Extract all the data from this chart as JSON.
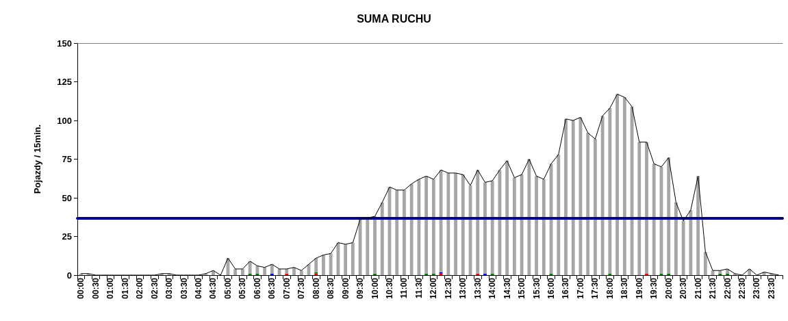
{
  "chart_data": {
    "type": "bar",
    "title": "SUMA RUCHU",
    "ylabel": "Pojazdy / 15min.",
    "categories": [
      "00:00",
      null,
      "00:30",
      null,
      "01:00",
      null,
      "01:30",
      null,
      "02:00",
      null,
      "02:30",
      null,
      "03:00",
      null,
      "03:30",
      null,
      "04:00",
      null,
      "04:30",
      null,
      "05:00",
      null,
      "05:30",
      null,
      "06:00",
      null,
      "06:30",
      null,
      "07:00",
      null,
      "07:30",
      null,
      "08:00",
      null,
      "08:30",
      null,
      "09:00",
      null,
      "09:30",
      null,
      "10:00",
      null,
      "10:30",
      null,
      "11:00",
      null,
      "11:30",
      null,
      "12:00",
      null,
      "12:30",
      null,
      "13:00",
      null,
      "13:30",
      null,
      "14:00",
      null,
      "14:30",
      null,
      "15:00",
      null,
      "15:30",
      null,
      "16:00",
      null,
      "16:30",
      null,
      "17:00",
      null,
      "17:30",
      null,
      "18:00",
      null,
      "18:30",
      null,
      "19:00",
      null,
      "19:30",
      null,
      "20:00",
      null,
      "20:30",
      null,
      "21:00",
      null,
      "21:30",
      null,
      "22:00",
      null,
      "22:30",
      null,
      "23:00",
      null,
      "23:30",
      null
    ],
    "stacked": true,
    "series": [
      {
        "color": "#ff0000",
        "values": [
          null,
          null,
          null,
          null,
          null,
          null,
          null,
          null,
          null,
          null,
          null,
          null,
          null,
          null,
          null,
          null,
          null,
          null,
          null,
          null,
          null,
          null,
          null,
          null,
          null,
          null,
          null,
          null,
          1,
          null,
          null,
          null,
          1,
          null,
          null,
          null,
          null,
          null,
          null,
          null,
          null,
          null,
          null,
          null,
          null,
          null,
          null,
          null,
          null,
          1,
          null,
          null,
          null,
          null,
          1,
          null,
          null,
          null,
          null,
          null,
          null,
          null,
          null,
          null,
          null,
          null,
          null,
          null,
          null,
          null,
          null,
          null,
          null,
          null,
          null,
          null,
          null,
          1,
          null,
          null,
          null,
          null,
          null,
          null,
          null,
          null,
          null,
          null,
          null,
          null,
          null,
          null,
          null,
          null,
          null,
          null
        ]
      },
      {
        "color": "#0000ff",
        "values": [
          null,
          null,
          null,
          null,
          null,
          null,
          null,
          null,
          null,
          null,
          null,
          null,
          null,
          null,
          null,
          null,
          null,
          null,
          null,
          null,
          null,
          null,
          null,
          null,
          null,
          null,
          1,
          null,
          null,
          null,
          null,
          null,
          null,
          null,
          null,
          null,
          null,
          null,
          null,
          null,
          null,
          null,
          null,
          null,
          null,
          null,
          null,
          null,
          null,
          1,
          null,
          null,
          null,
          null,
          null,
          1,
          null,
          null,
          null,
          null,
          null,
          null,
          null,
          null,
          null,
          null,
          null,
          null,
          null,
          null,
          null,
          null,
          null,
          null,
          null,
          null,
          null,
          null,
          null,
          null,
          null,
          null,
          null,
          null,
          null,
          null,
          null,
          null,
          null,
          null,
          null,
          null,
          null,
          null,
          null,
          null
        ]
      },
      {
        "color": "#008000",
        "values": [
          null,
          null,
          null,
          null,
          null,
          null,
          null,
          null,
          null,
          null,
          null,
          null,
          null,
          null,
          null,
          null,
          null,
          null,
          null,
          null,
          null,
          null,
          null,
          1,
          1,
          null,
          null,
          null,
          null,
          null,
          null,
          null,
          1,
          null,
          null,
          null,
          null,
          null,
          null,
          null,
          1,
          null,
          null,
          null,
          null,
          null,
          null,
          1,
          1,
          null,
          null,
          null,
          null,
          null,
          null,
          null,
          1,
          null,
          null,
          null,
          null,
          null,
          null,
          null,
          1,
          null,
          null,
          null,
          null,
          null,
          null,
          null,
          1,
          null,
          null,
          null,
          null,
          null,
          null,
          1,
          1,
          null,
          null,
          null,
          null,
          null,
          null,
          1,
          1,
          null,
          null,
          null,
          null,
          null,
          null,
          null
        ]
      },
      {
        "color": "#a6a6a6",
        "values": [
          1,
          1,
          0,
          0,
          0,
          0,
          0,
          0,
          0,
          0,
          0,
          1,
          1,
          0,
          0,
          0,
          0,
          1,
          3,
          0,
          11,
          4,
          4,
          8,
          5,
          5,
          6,
          4,
          3,
          5,
          3,
          7,
          9,
          13,
          14,
          21,
          20,
          21,
          36,
          37,
          37,
          47,
          57,
          55,
          55,
          59,
          62,
          63,
          61,
          66,
          66,
          66,
          65,
          58,
          67,
          59,
          60,
          68,
          74,
          63,
          65,
          75,
          64,
          62,
          71,
          78,
          101,
          100,
          102,
          92,
          88,
          103,
          107,
          117,
          115,
          109,
          86,
          85,
          72,
          69,
          75,
          47,
          35,
          42,
          64,
          15,
          3,
          2,
          3,
          1,
          0,
          4,
          0,
          2,
          1,
          0
        ]
      },
      {
        "type": "line",
        "color": "#000000",
        "marker": "none",
        "values": [
          1,
          1,
          0,
          0,
          0,
          0,
          0,
          0,
          0,
          0,
          0,
          1,
          1,
          0,
          0,
          0,
          0,
          1,
          3,
          0,
          11,
          4,
          4,
          9,
          6,
          5,
          7,
          4,
          4,
          5,
          3,
          7,
          11,
          13,
          14,
          21,
          20,
          21,
          36,
          37,
          38,
          47,
          57,
          55,
          55,
          59,
          62,
          64,
          62,
          68,
          66,
          66,
          65,
          58,
          68,
          60,
          61,
          68,
          74,
          63,
          65,
          75,
          64,
          62,
          72,
          78,
          101,
          100,
          102,
          92,
          88,
          103,
          108,
          117,
          115,
          109,
          86,
          86,
          72,
          70,
          76,
          47,
          35,
          42,
          64,
          15,
          3,
          3,
          4,
          1,
          0,
          4,
          0,
          2,
          1,
          0
        ]
      }
    ],
    "ylim": [
      0,
      150
    ],
    "yticks": [
      0,
      25,
      50,
      75,
      100,
      125,
      150
    ],
    "ref_lines": [
      {
        "axis": "y",
        "value": 37,
        "color": "#000080"
      }
    ]
  }
}
